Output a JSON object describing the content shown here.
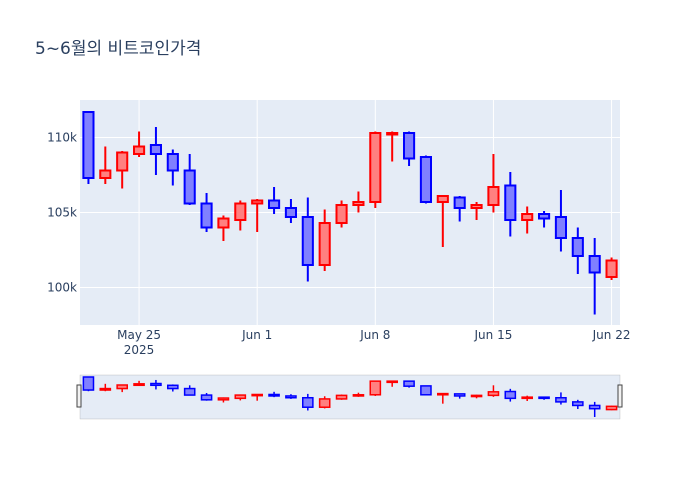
{
  "chart_data": {
    "type": "candlestick",
    "title": "5~6월의 비트코인가격",
    "xlabel": "",
    "ylabel": "",
    "ylim": [
      97500,
      112500
    ],
    "xlim": [
      "2025-05-22",
      "2025-06-23"
    ],
    "x_ticks": [
      {
        "date": "2025-05-25",
        "label": "May 25",
        "sublabel": "2025"
      },
      {
        "date": "2025-06-01",
        "label": "Jun 1"
      },
      {
        "date": "2025-06-08",
        "label": "Jun 8"
      },
      {
        "date": "2025-06-15",
        "label": "Jun 15"
      },
      {
        "date": "2025-06-22",
        "label": "Jun 22"
      }
    ],
    "y_ticks": [
      {
        "value": 100000,
        "label": "100k"
      },
      {
        "value": 105000,
        "label": "105k"
      },
      {
        "value": 110000,
        "label": "110k"
      }
    ],
    "increasing_color": "#ff0000",
    "decreasing_color": "#0000ff",
    "increasing_fill": "#ff8080",
    "decreasing_fill": "#8080ff",
    "grid": true,
    "rangeslider": true,
    "candles": [
      {
        "date": "2025-05-22",
        "open": 111700,
        "high": 111700,
        "low": 106900,
        "close": 107300
      },
      {
        "date": "2025-05-23",
        "open": 107300,
        "high": 109400,
        "low": 106900,
        "close": 107800
      },
      {
        "date": "2025-05-24",
        "open": 107800,
        "high": 109100,
        "low": 106600,
        "close": 109000
      },
      {
        "date": "2025-05-25",
        "open": 108900,
        "high": 110400,
        "low": 108700,
        "close": 109400
      },
      {
        "date": "2025-05-26",
        "open": 109500,
        "high": 110700,
        "low": 107500,
        "close": 108900
      },
      {
        "date": "2025-05-27",
        "open": 108900,
        "high": 109200,
        "low": 106800,
        "close": 107800
      },
      {
        "date": "2025-05-28",
        "open": 107800,
        "high": 108900,
        "low": 105500,
        "close": 105600
      },
      {
        "date": "2025-05-29",
        "open": 105600,
        "high": 106300,
        "low": 103700,
        "close": 104000
      },
      {
        "date": "2025-05-30",
        "open": 104000,
        "high": 104800,
        "low": 103100,
        "close": 104600
      },
      {
        "date": "2025-05-31",
        "open": 104500,
        "high": 105800,
        "low": 103800,
        "close": 105600
      },
      {
        "date": "2025-06-01",
        "open": 105600,
        "high": 105900,
        "low": 103700,
        "close": 105800
      },
      {
        "date": "2025-06-02",
        "open": 105800,
        "high": 106700,
        "low": 104900,
        "close": 105300
      },
      {
        "date": "2025-06-03",
        "open": 105300,
        "high": 105900,
        "low": 104300,
        "close": 104700
      },
      {
        "date": "2025-06-04",
        "open": 104700,
        "high": 106000,
        "low": 100400,
        "close": 101500
      },
      {
        "date": "2025-06-05",
        "open": 101500,
        "high": 105200,
        "low": 101100,
        "close": 104300
      },
      {
        "date": "2025-06-06",
        "open": 104300,
        "high": 105800,
        "low": 104000,
        "close": 105500
      },
      {
        "date": "2025-06-07",
        "open": 105500,
        "high": 106400,
        "low": 105000,
        "close": 105700
      },
      {
        "date": "2025-06-08",
        "open": 105700,
        "high": 110400,
        "low": 105300,
        "close": 110300
      },
      {
        "date": "2025-06-09",
        "open": 110300,
        "high": 110400,
        "low": 108400,
        "close": 110300
      },
      {
        "date": "2025-06-10",
        "open": 110300,
        "high": 110400,
        "low": 108100,
        "close": 108600
      },
      {
        "date": "2025-06-11",
        "open": 108700,
        "high": 108800,
        "low": 105600,
        "close": 105700
      },
      {
        "date": "2025-06-12",
        "open": 105700,
        "high": 106100,
        "low": 102700,
        "close": 106100
      },
      {
        "date": "2025-06-13",
        "open": 106000,
        "high": 106100,
        "low": 104400,
        "close": 105300
      },
      {
        "date": "2025-06-14",
        "open": 105300,
        "high": 105700,
        "low": 104500,
        "close": 105500
      },
      {
        "date": "2025-06-15",
        "open": 105500,
        "high": 108900,
        "low": 105000,
        "close": 106700
      },
      {
        "date": "2025-06-16",
        "open": 106800,
        "high": 107700,
        "low": 103400,
        "close": 104500
      },
      {
        "date": "2025-06-17",
        "open": 104500,
        "high": 105400,
        "low": 103600,
        "close": 104900
      },
      {
        "date": "2025-06-18",
        "open": 104900,
        "high": 105100,
        "low": 104000,
        "close": 104600
      },
      {
        "date": "2025-06-19",
        "open": 104700,
        "high": 106500,
        "low": 102400,
        "close": 103300
      },
      {
        "date": "2025-06-20",
        "open": 103300,
        "high": 104000,
        "low": 100900,
        "close": 102100
      },
      {
        "date": "2025-06-21",
        "open": 102100,
        "high": 103300,
        "low": 98200,
        "close": 101000
      },
      {
        "date": "2025-06-22",
        "open": 100700,
        "high": 102000,
        "low": 100500,
        "close": 101800
      }
    ]
  }
}
